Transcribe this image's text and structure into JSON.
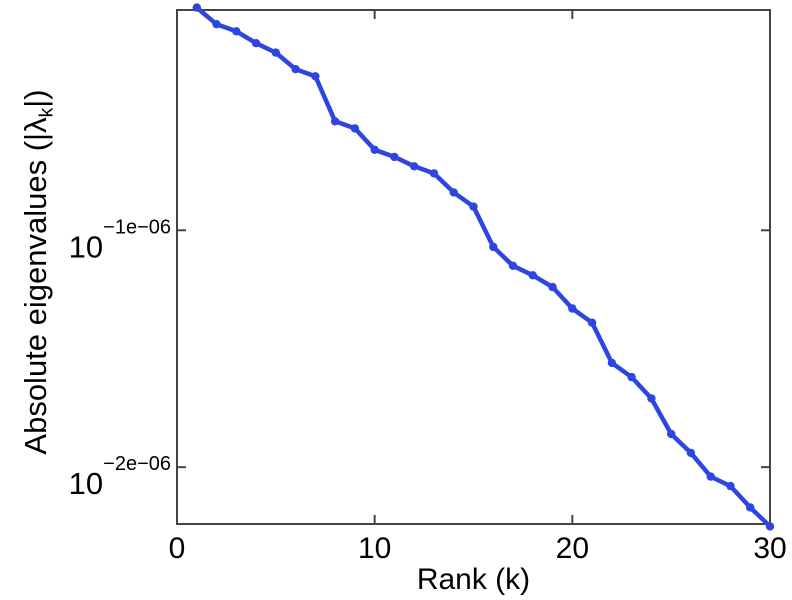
{
  "chart_data": {
    "type": "line",
    "title": "",
    "xlabel": "Rank (k)",
    "ylabel": "Absolute eigenvalues (|λk|)",
    "ylabel_parts": {
      "prefix": "Absolute eigenvalues (|λ",
      "subscript": "k",
      "suffix": "|)"
    },
    "x": [
      1,
      2,
      3,
      4,
      5,
      6,
      7,
      8,
      9,
      10,
      11,
      12,
      13,
      14,
      15,
      16,
      17,
      18,
      19,
      20,
      21,
      22,
      23,
      24,
      25,
      26,
      27,
      28,
      29,
      30
    ],
    "y_log10_exponents_e6": [
      -0.06,
      -0.13,
      -0.16,
      -0.21,
      -0.25,
      -0.32,
      -0.35,
      -0.54,
      -0.57,
      -0.66,
      -0.69,
      -0.73,
      -0.76,
      -0.84,
      -0.9,
      -1.07,
      -1.15,
      -1.19,
      -1.24,
      -1.33,
      -1.39,
      -1.56,
      -1.62,
      -1.71,
      -1.86,
      -1.94,
      -2.04,
      -2.08,
      -2.17,
      -2.25
    ],
    "y_value_rule": "y value = 10^(exponent × 1e−6), log-scale axis",
    "xlim": [
      0,
      30
    ],
    "ylim_log10_exponents_e6": [
      -2.24,
      -0.07
    ],
    "x_ticks": [
      {
        "value": 0,
        "label": "0"
      },
      {
        "value": 10,
        "label": "10"
      },
      {
        "value": 20,
        "label": "20"
      },
      {
        "value": 30,
        "label": "30"
      }
    ],
    "y_ticks": [
      {
        "exponent_e6": -1,
        "base": "10",
        "superscript": "−1e−06"
      },
      {
        "exponent_e6": -2,
        "base": "10",
        "superscript": "−2e−06"
      }
    ],
    "grid": false,
    "legend": "none",
    "marker": "filled-circle",
    "colors": {
      "line": "#2d46e0",
      "marker": "#2d46e0",
      "axis": "#444444",
      "text": "#000000",
      "background": "#ffffff"
    }
  }
}
